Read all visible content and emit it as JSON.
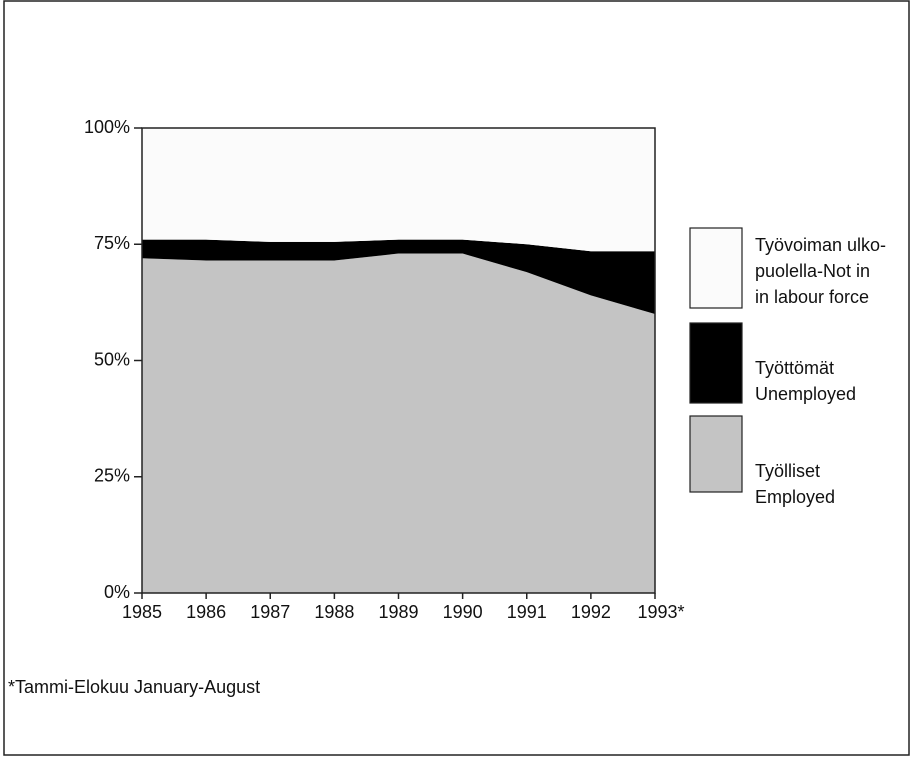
{
  "chart_data": {
    "type": "stacked-area",
    "categories": [
      "1985",
      "1986",
      "1987",
      "1988",
      "1989",
      "1990",
      "1991",
      "1992",
      "1993*"
    ],
    "series": [
      {
        "name": "Työlliset\nEmployed",
        "color": "#c4c4c4",
        "values": [
          72,
          71.5,
          71.5,
          71.5,
          73,
          73,
          69,
          64,
          60
        ]
      },
      {
        "name": "Työttömät\nUnemployed",
        "color": "#000000",
        "values": [
          4,
          4.5,
          4,
          4,
          3,
          3,
          6,
          9.5,
          13.5
        ]
      },
      {
        "name": "Työvoiman ulko-\npuolella-Not in\nin labour force",
        "color": "#fbfbfb",
        "values": [
          24,
          24,
          24.5,
          24.5,
          24,
          24,
          25,
          26.5,
          26.5
        ]
      }
    ],
    "ylim": [
      0,
      100
    ],
    "yticks": [
      {
        "value": 0,
        "label": "0%"
      },
      {
        "value": 25,
        "label": "25%"
      },
      {
        "value": 50,
        "label": "50%"
      },
      {
        "value": 75,
        "label": "75%"
      },
      {
        "value": 100,
        "label": "100%"
      }
    ],
    "footnote": "*Tammi-Elokuu January-August"
  }
}
